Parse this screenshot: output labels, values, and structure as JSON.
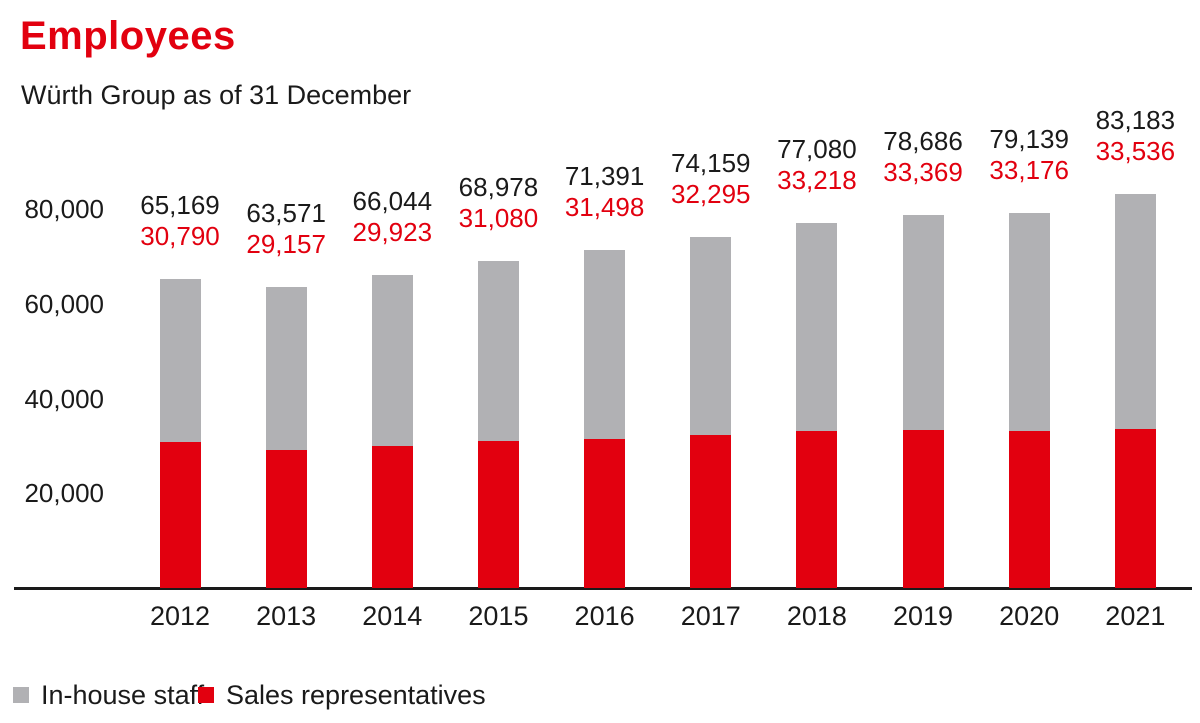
{
  "header": {
    "title": "Employees",
    "subtitle": "Würth Group as of 31 December"
  },
  "colors": {
    "brand_red": "#e2000f",
    "bar_gray": "#b1b1b4",
    "text_black": "#1a1a1a"
  },
  "chart_data": {
    "type": "bar",
    "variant": "stacked",
    "title": "Employees",
    "subtitle": "Würth Group as of 31 December",
    "categories": [
      "2012",
      "2013",
      "2014",
      "2015",
      "2016",
      "2017",
      "2018",
      "2019",
      "2020",
      "2021"
    ],
    "series": [
      {
        "name": "Sales representatives",
        "color": "#e2000f",
        "values": [
          30790,
          29157,
          29923,
          31080,
          31498,
          32295,
          33218,
          33369,
          33176,
          33536
        ]
      },
      {
        "name": "In-house staff",
        "color": "#b1b1b4",
        "values": [
          34379,
          34414,
          36121,
          37898,
          39893,
          41864,
          43862,
          45317,
          45963,
          49647
        ]
      }
    ],
    "totals": [
      65169,
      63571,
      66044,
      68978,
      71391,
      74159,
      77080,
      78686,
      79139,
      83183
    ],
    "data_labels": {
      "total_color": "#1a1a1a",
      "sales_color": "#e2000f",
      "format": "thousands-comma"
    },
    "xlabel": "",
    "ylabel": "",
    "y_ticks": [
      20000,
      40000,
      60000,
      80000
    ],
    "ylim": [
      0,
      84500
    ],
    "grid": false,
    "legend_position": "bottom-left"
  },
  "legend": {
    "items": [
      {
        "label": "In-house staff",
        "color": "#b1b1b4"
      },
      {
        "label": "Sales representatives",
        "color": "#e2000f"
      }
    ]
  }
}
